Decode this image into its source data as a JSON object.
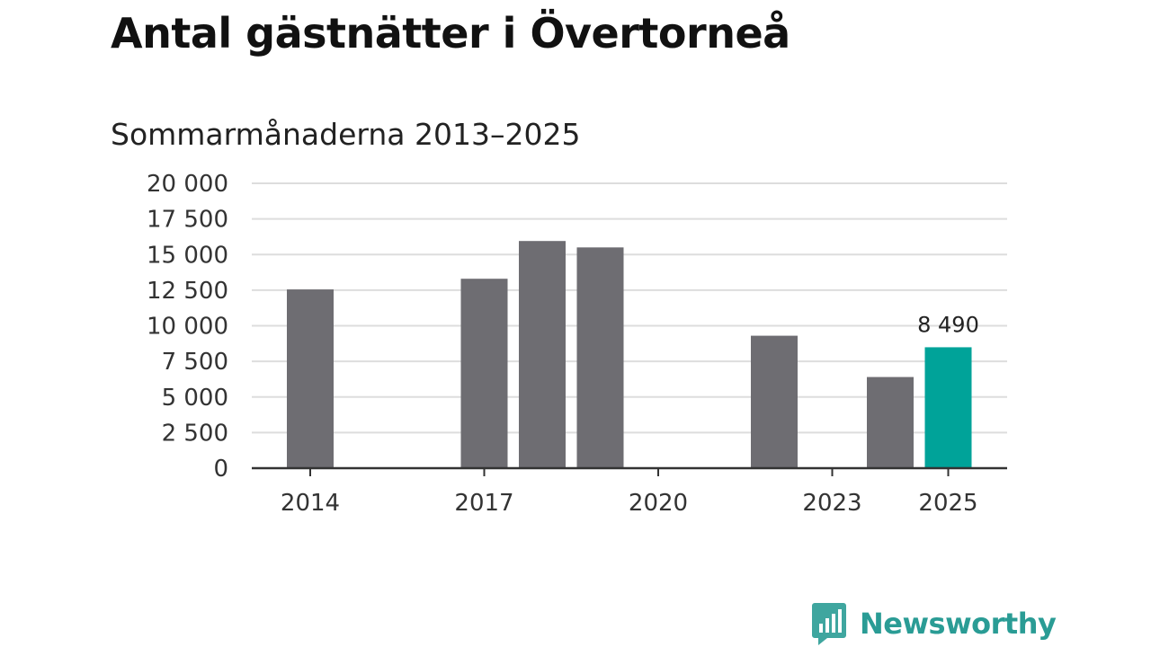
{
  "chart_data": {
    "type": "bar",
    "title": "Antal gästnätter i Övertorneå",
    "subtitle": "Sommarmånaderna 2013–2025",
    "x": [
      2013,
      2014,
      2015,
      2016,
      2017,
      2018,
      2019,
      2020,
      2021,
      2022,
      2023,
      2024,
      2025
    ],
    "values": [
      null,
      12550,
      null,
      null,
      13300,
      15950,
      15500,
      null,
      null,
      9300,
      null,
      6400,
      8490
    ],
    "xticks": [
      2014,
      2017,
      2020,
      2023,
      2025
    ],
    "xtick_labels": [
      "2014",
      "2017",
      "2020",
      "2023",
      "2025"
    ],
    "yticks": [
      0,
      2500,
      5000,
      7500,
      10000,
      12500,
      15000,
      17500,
      20000
    ],
    "ytick_labels": [
      "0",
      "2 500",
      "5 000",
      "7 500",
      "10 000",
      "12 500",
      "15 000",
      "17 500",
      "20 000"
    ],
    "ylim": [
      0,
      20000
    ],
    "grid": true,
    "highlight": {
      "year": 2025,
      "label": "8 490"
    },
    "colors": {
      "bar": "#6e6d72",
      "highlight": "#00a399",
      "grid": "#dddddd",
      "axis": "#333333"
    }
  },
  "logo": {
    "text": "Newsworthy",
    "icon": "newsworthy-logo-icon",
    "color": "#2a9c95"
  }
}
